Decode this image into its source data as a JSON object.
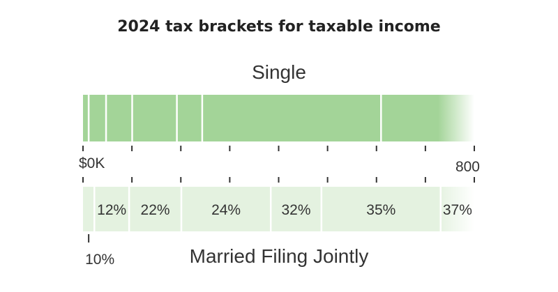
{
  "chart_data": {
    "type": "bar",
    "title": "2024 tax brackets for taxable income",
    "xlim": [
      0,
      800
    ],
    "x_tick_labels": [
      {
        "value": 0,
        "label": "$0K"
      },
      {
        "value": 800,
        "label": "800"
      }
    ],
    "x_ticks": [
      0,
      100,
      200,
      300,
      400,
      500,
      600,
      700,
      800
    ],
    "rates": [
      "10%",
      "12%",
      "22%",
      "24%",
      "32%",
      "35%",
      "37%"
    ],
    "series": [
      {
        "name": "Single",
        "thresholds": [
          0,
          11.6,
          47.15,
          100.525,
          191.95,
          243.725,
          609.35
        ],
        "color": "#a3d498"
      },
      {
        "name": "Married Filing Jointly",
        "thresholds": [
          0,
          23.2,
          94.3,
          201.05,
          383.9,
          487.45,
          731.2
        ],
        "color": "#e4f2e0"
      }
    ],
    "rate_labels_shown": [
      "12%",
      "22%",
      "24%",
      "32%",
      "35%",
      "37%"
    ],
    "below_label": "10%"
  }
}
